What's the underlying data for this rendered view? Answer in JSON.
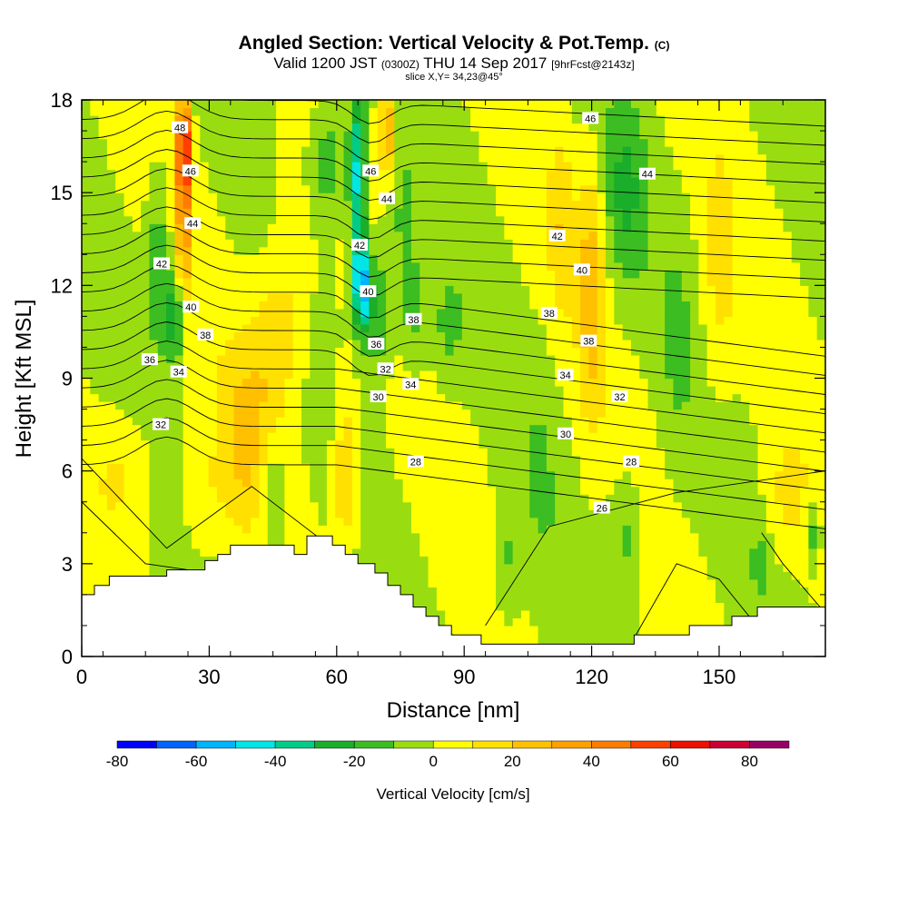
{
  "header": {
    "title": "Angled Section: Vertical Velocity & Pot.Temp.",
    "title_unit": "(C)",
    "valid_prefix": "Valid 1200 JST",
    "valid_zulu": "(0300Z)",
    "valid_date": "THU 14 Sep 2017",
    "forecast_tag": "[9hrFcst@2143z]",
    "slice": "slice X,Y= 34,23@45°"
  },
  "chart_data": {
    "type": "heatmap",
    "xlabel": "Distance [nm]",
    "ylabel": "Height [Kft MSL]",
    "xlim": [
      0,
      175
    ],
    "ylim": [
      0,
      18
    ],
    "x_ticks": [
      0,
      30,
      60,
      90,
      120,
      150
    ],
    "y_ticks": [
      0,
      3,
      6,
      9,
      12,
      15,
      18
    ],
    "colorbar": {
      "title": "Vertical Velocity [cm/s]",
      "ticks": [
        -80,
        -60,
        -40,
        -20,
        0,
        20,
        40,
        60,
        80
      ],
      "levels": [
        -80,
        -70,
        -60,
        -50,
        -40,
        -30,
        -20,
        -10,
        0,
        10,
        20,
        30,
        40,
        50,
        60,
        70,
        80,
        90
      ],
      "colors": [
        "#0000ff",
        "#0064ff",
        "#00b4ff",
        "#00e6e6",
        "#00cc88",
        "#1aae2a",
        "#3cbd22",
        "#99dd11",
        "#ffff00",
        "#ffe000",
        "#ffc000",
        "#ffa000",
        "#ff7c00",
        "#ff4000",
        "#ee1100",
        "#cc0033",
        "#990066"
      ]
    },
    "theta_contour_labels": [
      {
        "value": "48",
        "x": 23.1,
        "y": 17.1
      },
      {
        "value": "46",
        "x": 25.6,
        "y": 15.7
      },
      {
        "value": "44",
        "x": 26.1,
        "y": 14.0
      },
      {
        "value": "42",
        "x": 18.8,
        "y": 12.7
      },
      {
        "value": "40",
        "x": 25.7,
        "y": 11.3
      },
      {
        "value": "38",
        "x": 29.1,
        "y": 10.4
      },
      {
        "value": "36",
        "x": 16.0,
        "y": 9.6
      },
      {
        "value": "34",
        "x": 22.8,
        "y": 9.2
      },
      {
        "value": "32",
        "x": 18.6,
        "y": 7.5
      },
      {
        "value": "46",
        "x": 68.0,
        "y": 15.7
      },
      {
        "value": "44",
        "x": 71.8,
        "y": 14.8
      },
      {
        "value": "42",
        "x": 65.4,
        "y": 13.3
      },
      {
        "value": "40",
        "x": 67.4,
        "y": 11.8
      },
      {
        "value": "38",
        "x": 78.1,
        "y": 10.9
      },
      {
        "value": "36",
        "x": 69.3,
        "y": 10.1
      },
      {
        "value": "32",
        "x": 71.5,
        "y": 9.3
      },
      {
        "value": "34",
        "x": 77.4,
        "y": 8.8
      },
      {
        "value": "30",
        "x": 69.8,
        "y": 8.4
      },
      {
        "value": "28",
        "x": 78.6,
        "y": 6.3
      },
      {
        "value": "46",
        "x": 119.7,
        "y": 17.4
      },
      {
        "value": "44",
        "x": 133.1,
        "y": 15.6
      },
      {
        "value": "42",
        "x": 111.9,
        "y": 13.6
      },
      {
        "value": "40",
        "x": 117.7,
        "y": 12.5
      },
      {
        "value": "38",
        "x": 110.0,
        "y": 11.1
      },
      {
        "value": "38",
        "x": 119.3,
        "y": 10.2
      },
      {
        "value": "34",
        "x": 113.8,
        "y": 9.1
      },
      {
        "value": "32",
        "x": 126.6,
        "y": 8.4
      },
      {
        "value": "30",
        "x": 113.9,
        "y": 7.2
      },
      {
        "value": "28",
        "x": 129.3,
        "y": 6.3
      },
      {
        "value": "26",
        "x": 122.4,
        "y": 4.8
      }
    ],
    "terrain_kft": [
      [
        0,
        2.0
      ],
      [
        3,
        2.0
      ],
      [
        3,
        2.3
      ],
      [
        6.5,
        2.3
      ],
      [
        6.5,
        2.6
      ],
      [
        20,
        2.6
      ],
      [
        20,
        2.8
      ],
      [
        29,
        2.8
      ],
      [
        29,
        3.1
      ],
      [
        32,
        3.1
      ],
      [
        32,
        3.3
      ],
      [
        35,
        3.3
      ],
      [
        35,
        3.6
      ],
      [
        37,
        3.6
      ],
      [
        50,
        3.6
      ],
      [
        50,
        3.3
      ],
      [
        53,
        3.3
      ],
      [
        53,
        3.9
      ],
      [
        59,
        3.9
      ],
      [
        59,
        3.6
      ],
      [
        62,
        3.6
      ],
      [
        62,
        3.3
      ],
      [
        65,
        3.3
      ],
      [
        65,
        3.0
      ],
      [
        69,
        3.0
      ],
      [
        69,
        2.7
      ],
      [
        72,
        2.7
      ],
      [
        72,
        2.3
      ],
      [
        75,
        2.3
      ],
      [
        75,
        2.0
      ],
      [
        78,
        2.0
      ],
      [
        78,
        1.6
      ],
      [
        81,
        1.6
      ],
      [
        81,
        1.3
      ],
      [
        84,
        1.3
      ],
      [
        84,
        1.0
      ],
      [
        87,
        1.0
      ],
      [
        87,
        0.7
      ],
      [
        94,
        0.7
      ],
      [
        94,
        0.4
      ],
      [
        130,
        0.4
      ],
      [
        130,
        0.7
      ],
      [
        143,
        0.7
      ],
      [
        143,
        1.0
      ],
      [
        153,
        1.0
      ],
      [
        153,
        1.3
      ],
      [
        159,
        1.3
      ],
      [
        159,
        1.6
      ],
      [
        175,
        1.6
      ]
    ]
  }
}
